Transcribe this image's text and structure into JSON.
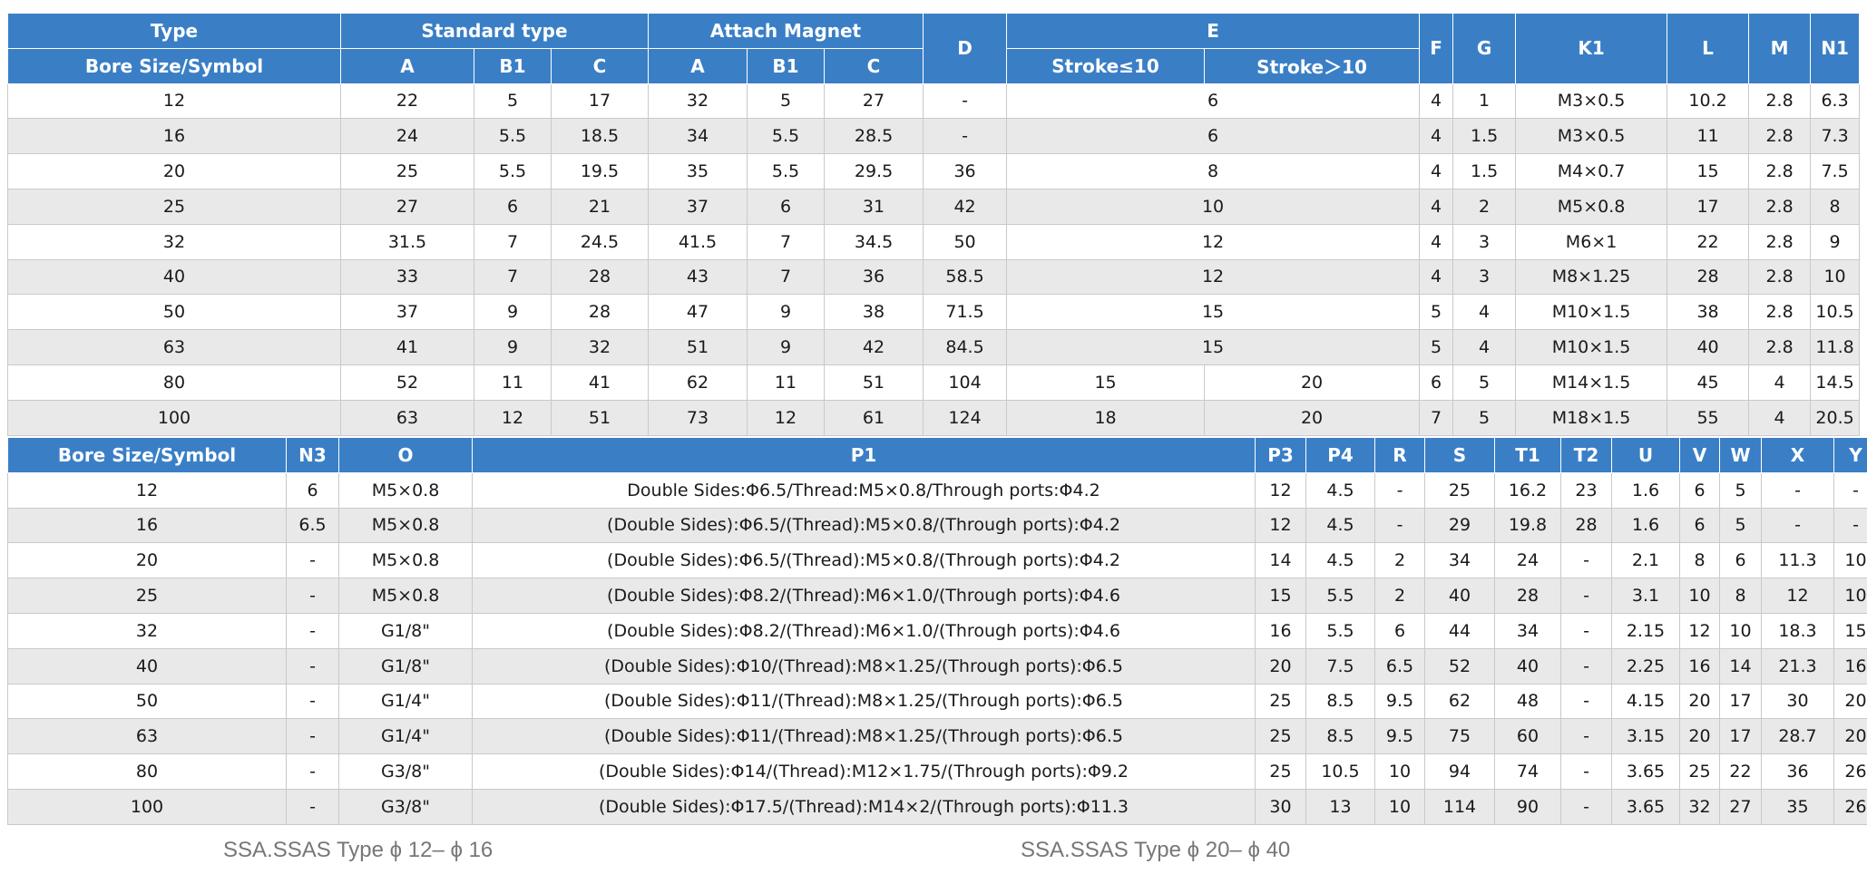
{
  "top_table": {
    "headers": {
      "type": "Type",
      "standard_type": "Standard type",
      "attach_magnet": "Attach Magnet",
      "d": "D",
      "e": "E",
      "f": "F",
      "g": "G",
      "k1": "K1",
      "l": "L",
      "m": "M",
      "n1": "N1",
      "bore_size": "Bore Size/Symbol",
      "std_a": "A",
      "std_b1": "B1",
      "std_c": "C",
      "mag_a": "A",
      "mag_b1": "B1",
      "mag_c": "C",
      "stroke_le10": "Stroke≤10",
      "stroke_gt10": "Stroke＞10"
    },
    "rows": [
      {
        "bore": "12",
        "std_a": "22",
        "std_b1": "5",
        "std_c": "17",
        "mag_a": "32",
        "mag_b1": "5",
        "mag_c": "27",
        "d": "-",
        "e": "6",
        "f": "4",
        "g": "1",
        "k1": "M3×0.5",
        "l": "10.2",
        "m": "2.8",
        "n1": "6.3"
      },
      {
        "bore": "16",
        "std_a": "24",
        "std_b1": "5.5",
        "std_c": "18.5",
        "mag_a": "34",
        "mag_b1": "5.5",
        "mag_c": "28.5",
        "d": "-",
        "e": "6",
        "f": "4",
        "g": "1.5",
        "k1": "M3×0.5",
        "l": "11",
        "m": "2.8",
        "n1": "7.3"
      },
      {
        "bore": "20",
        "std_a": "25",
        "std_b1": "5.5",
        "std_c": "19.5",
        "mag_a": "35",
        "mag_b1": "5.5",
        "mag_c": "29.5",
        "d": "36",
        "e": "8",
        "f": "4",
        "g": "1.5",
        "k1": "M4×0.7",
        "l": "15",
        "m": "2.8",
        "n1": "7.5"
      },
      {
        "bore": "25",
        "std_a": "27",
        "std_b1": "6",
        "std_c": "21",
        "mag_a": "37",
        "mag_b1": "6",
        "mag_c": "31",
        "d": "42",
        "e": "10",
        "f": "4",
        "g": "2",
        "k1": "M5×0.8",
        "l": "17",
        "m": "2.8",
        "n1": "8"
      },
      {
        "bore": "32",
        "std_a": "31.5",
        "std_b1": "7",
        "std_c": "24.5",
        "mag_a": "41.5",
        "mag_b1": "7",
        "mag_c": "34.5",
        "d": "50",
        "e": "12",
        "f": "4",
        "g": "3",
        "k1": "M6×1",
        "l": "22",
        "m": "2.8",
        "n1": "9"
      },
      {
        "bore": "40",
        "std_a": "33",
        "std_b1": "7",
        "std_c": "28",
        "mag_a": "43",
        "mag_b1": "7",
        "mag_c": "36",
        "d": "58.5",
        "e": "12",
        "f": "4",
        "g": "3",
        "k1": "M8×1.25",
        "l": "28",
        "m": "2.8",
        "n1": "10"
      },
      {
        "bore": "50",
        "std_a": "37",
        "std_b1": "9",
        "std_c": "28",
        "mag_a": "47",
        "mag_b1": "9",
        "mag_c": "38",
        "d": "71.5",
        "e": "15",
        "f": "5",
        "g": "4",
        "k1": "M10×1.5",
        "l": "38",
        "m": "2.8",
        "n1": "10.5"
      },
      {
        "bore": "63",
        "std_a": "41",
        "std_b1": "9",
        "std_c": "32",
        "mag_a": "51",
        "mag_b1": "9",
        "mag_c": "42",
        "d": "84.5",
        "e": "15",
        "f": "5",
        "g": "4",
        "k1": "M10×1.5",
        "l": "40",
        "m": "2.8",
        "n1": "11.8"
      },
      {
        "bore": "80",
        "std_a": "52",
        "std_b1": "11",
        "std_c": "41",
        "mag_a": "62",
        "mag_b1": "11",
        "mag_c": "51",
        "d": "104",
        "e_le10": "15",
        "e_gt10": "20",
        "f": "6",
        "g": "5",
        "k1": "M14×1.5",
        "l": "45",
        "m": "4",
        "n1": "14.5"
      },
      {
        "bore": "100",
        "std_a": "63",
        "std_b1": "12",
        "std_c": "51",
        "mag_a": "73",
        "mag_b1": "12",
        "mag_c": "61",
        "d": "124",
        "e_le10": "18",
        "e_gt10": "20",
        "f": "7",
        "g": "5",
        "k1": "M18×1.5",
        "l": "55",
        "m": "4",
        "n1": "20.5"
      }
    ]
  },
  "bottom_table": {
    "headers": {
      "bore_size": "Bore Size/Symbol",
      "n3": "N3",
      "o": "O",
      "p1": "P1",
      "p3": "P3",
      "p4": "P4",
      "r": "R",
      "s": "S",
      "t1": "T1",
      "t2": "T2",
      "u": "U",
      "v": "V",
      "w": "W",
      "x": "X",
      "y": "Y"
    },
    "rows": [
      {
        "bore": "12",
        "n3": "6",
        "o": "M5×0.8",
        "p1": "Double Sides:Φ6.5/Thread:M5×0.8/Through ports:Φ4.2",
        "p3": "12",
        "p4": "4.5",
        "r": "-",
        "s": "25",
        "t1": "16.2",
        "t2": "23",
        "u": "1.6",
        "v": "6",
        "w": "5",
        "x": "-",
        "y": "-"
      },
      {
        "bore": "16",
        "n3": "6.5",
        "o": "M5×0.8",
        "p1": "(Double Sides):Φ6.5/(Thread):M5×0.8/(Through ports):Φ4.2",
        "p3": "12",
        "p4": "4.5",
        "r": "-",
        "s": "29",
        "t1": "19.8",
        "t2": "28",
        "u": "1.6",
        "v": "6",
        "w": "5",
        "x": "-",
        "y": "-"
      },
      {
        "bore": "20",
        "n3": "-",
        "o": "M5×0.8",
        "p1": "(Double Sides):Φ6.5/(Thread):M5×0.8/(Through ports):Φ4.2",
        "p3": "14",
        "p4": "4.5",
        "r": "2",
        "s": "34",
        "t1": "24",
        "t2": "-",
        "u": "2.1",
        "v": "8",
        "w": "6",
        "x": "11.3",
        "y": "10"
      },
      {
        "bore": "25",
        "n3": "-",
        "o": "M5×0.8",
        "p1": "(Double Sides):Φ8.2/(Thread):M6×1.0/(Through ports):Φ4.6",
        "p3": "15",
        "p4": "5.5",
        "r": "2",
        "s": "40",
        "t1": "28",
        "t2": "-",
        "u": "3.1",
        "v": "10",
        "w": "8",
        "x": "12",
        "y": "10"
      },
      {
        "bore": "32",
        "n3": "-",
        "o": "G1/8\"",
        "p1": "(Double Sides):Φ8.2/(Thread):M6×1.0/(Through ports):Φ4.6",
        "p3": "16",
        "p4": "5.5",
        "r": "6",
        "s": "44",
        "t1": "34",
        "t2": "-",
        "u": "2.15",
        "v": "12",
        "w": "10",
        "x": "18.3",
        "y": "15"
      },
      {
        "bore": "40",
        "n3": "-",
        "o": "G1/8\"",
        "p1": "(Double Sides):Φ10/(Thread):M8×1.25/(Through ports):Φ6.5",
        "p3": "20",
        "p4": "7.5",
        "r": "6.5",
        "s": "52",
        "t1": "40",
        "t2": "-",
        "u": "2.25",
        "v": "16",
        "w": "14",
        "x": "21.3",
        "y": "16"
      },
      {
        "bore": "50",
        "n3": "-",
        "o": "G1/4\"",
        "p1": "(Double Sides):Φ11/(Thread):M8×1.25/(Through ports):Φ6.5",
        "p3": "25",
        "p4": "8.5",
        "r": "9.5",
        "s": "62",
        "t1": "48",
        "t2": "-",
        "u": "4.15",
        "v": "20",
        "w": "17",
        "x": "30",
        "y": "20"
      },
      {
        "bore": "63",
        "n3": "-",
        "o": "G1/4\"",
        "p1": "(Double Sides):Φ11/(Thread):M8×1.25/(Through ports):Φ6.5",
        "p3": "25",
        "p4": "8.5",
        "r": "9.5",
        "s": "75",
        "t1": "60",
        "t2": "-",
        "u": "3.15",
        "v": "20",
        "w": "17",
        "x": "28.7",
        "y": "20"
      },
      {
        "bore": "80",
        "n3": "-",
        "o": "G3/8\"",
        "p1": "(Double Sides):Φ14/(Thread):M12×1.75/(Through ports):Φ9.2",
        "p3": "25",
        "p4": "10.5",
        "r": "10",
        "s": "94",
        "t1": "74",
        "t2": "-",
        "u": "3.65",
        "v": "25",
        "w": "22",
        "x": "36",
        "y": "26"
      },
      {
        "bore": "100",
        "n3": "-",
        "o": "G3/8\"",
        "p1": "(Double Sides):Φ17.5/(Thread):M14×2/(Through ports):Φ11.3",
        "p3": "30",
        "p4": "13",
        "r": "10",
        "s": "114",
        "t1": "90",
        "t2": "-",
        "u": "3.65",
        "v": "32",
        "w": "27",
        "x": "35",
        "y": "26"
      }
    ]
  },
  "captions": {
    "left": "SSA.SSAS Type  ϕ 12– ϕ 16",
    "right": "SSA.SSAS Type ϕ 20– ϕ 40"
  }
}
